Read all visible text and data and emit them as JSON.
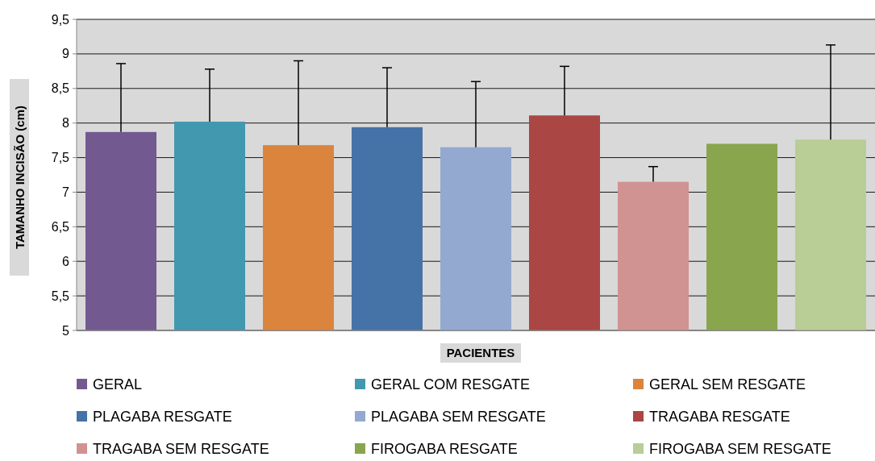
{
  "chart_data": {
    "type": "bar",
    "xlabel": "PACIENTES",
    "ylabel": "TAMANHO INCISÃO (cm)",
    "categories": [
      null,
      null,
      null,
      null,
      null,
      null,
      null,
      null,
      null
    ],
    "ylim": [
      5,
      9.5
    ],
    "yticks": [
      5,
      {
        "value": 5.5,
        "label": "5,5"
      },
      6,
      {
        "value": 6.5,
        "label": "6,5"
      },
      7,
      {
        "value": 7.5,
        "label": "7,5"
      },
      8,
      {
        "value": 8.5,
        "label": "8,5"
      },
      9,
      {
        "value": 9.5,
        "label": "9,5"
      }
    ],
    "grid": "y",
    "legend": "bottom",
    "series": [
      {
        "name": "GERAL",
        "color": "#725990",
        "values": [
          7.87,
          null,
          null,
          null,
          null,
          null,
          null,
          null,
          null
        ],
        "errors": [
          [
            7.87,
            8.86
          ],
          null,
          null,
          null,
          null,
          null,
          null,
          null,
          null
        ]
      },
      {
        "name": "GERAL COM RESGATE",
        "color": "#4198af",
        "values": [
          null,
          8.02,
          null,
          null,
          null,
          null,
          null,
          null,
          null
        ],
        "errors": [
          null,
          [
            8.02,
            8.78
          ],
          null,
          null,
          null,
          null,
          null,
          null,
          null
        ]
      },
      {
        "name": "GERAL SEM RESGATE",
        "color": "#db843d",
        "values": [
          null,
          null,
          7.68,
          null,
          null,
          null,
          null,
          null,
          null
        ],
        "errors": [
          null,
          null,
          [
            7.68,
            8.9
          ],
          null,
          null,
          null,
          null,
          null,
          null
        ]
      },
      {
        "name": "PLAGABA RESGATE",
        "color": "#4572a7",
        "values": [
          null,
          null,
          null,
          7.94,
          null,
          null,
          null,
          null,
          null
        ],
        "errors": [
          null,
          null,
          null,
          [
            7.94,
            8.8
          ],
          null,
          null,
          null,
          null,
          null
        ]
      },
      {
        "name": "PLAGABA SEM RESGATE",
        "color": "#93a9cf",
        "values": [
          null,
          null,
          null,
          null,
          7.65,
          null,
          null,
          null,
          null
        ],
        "errors": [
          null,
          null,
          null,
          null,
          [
            7.65,
            8.6
          ],
          null,
          null,
          null,
          null
        ]
      },
      {
        "name": "TRAGABA RESGATE",
        "color": "#aa4643",
        "values": [
          null,
          null,
          null,
          null,
          null,
          8.11,
          null,
          null,
          null
        ],
        "errors": [
          null,
          null,
          null,
          null,
          null,
          [
            8.11,
            8.82
          ],
          null,
          null,
          null
        ]
      },
      {
        "name": "TRAGABA SEM RESGATE",
        "color": "#d19392",
        "values": [
          null,
          null,
          null,
          null,
          null,
          null,
          7.15,
          null,
          null
        ],
        "errors": [
          null,
          null,
          null,
          null,
          null,
          null,
          [
            7.15,
            7.37
          ],
          null,
          null
        ]
      },
      {
        "name": "FIROGABA RESGATE",
        "color": "#89a54e",
        "values": [
          null,
          null,
          null,
          null,
          null,
          null,
          null,
          7.7,
          null
        ]
      },
      {
        "name": "FIROGABA SEM RESGATE",
        "color": "#b9cd96",
        "values": [
          null,
          null,
          null,
          null,
          null,
          null,
          null,
          null,
          7.76
        ],
        "errors": [
          null,
          null,
          null,
          null,
          null,
          null,
          null,
          null,
          [
            7.76,
            9.13
          ]
        ]
      }
    ]
  }
}
